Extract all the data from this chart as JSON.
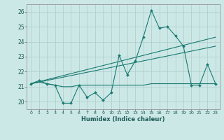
{
  "title": "",
  "xlabel": "Humidex (Indice chaleur)",
  "bg_color": "#cce8e6",
  "grid_color": "#aaccca",
  "line_color": "#1a7a72",
  "xlim": [
    -0.5,
    23.5
  ],
  "ylim": [
    19.5,
    26.5
  ],
  "xticks": [
    0,
    1,
    2,
    3,
    4,
    5,
    6,
    7,
    8,
    9,
    10,
    11,
    12,
    13,
    14,
    15,
    16,
    17,
    18,
    19,
    20,
    21,
    22,
    23
  ],
  "yticks": [
    20,
    21,
    22,
    23,
    24,
    25,
    26
  ],
  "line1_x": [
    0,
    1,
    2,
    3,
    4,
    5,
    6,
    7,
    8,
    9,
    10,
    11,
    12,
    13,
    14,
    15,
    16,
    17,
    18,
    19,
    20,
    21,
    22,
    23
  ],
  "line1_y": [
    21.2,
    21.4,
    21.2,
    21.1,
    19.9,
    19.9,
    21.1,
    20.3,
    20.6,
    20.1,
    20.6,
    23.1,
    21.8,
    22.7,
    24.3,
    26.1,
    24.9,
    25.0,
    24.4,
    23.7,
    21.1,
    21.1,
    22.5,
    21.2
  ],
  "line2_x": [
    0,
    1,
    2,
    3,
    4,
    5,
    6,
    7,
    8,
    9,
    10,
    11,
    12,
    13,
    14,
    15,
    16,
    17,
    18,
    19,
    20,
    21,
    22,
    23
  ],
  "line2_y": [
    21.2,
    21.3,
    21.2,
    21.1,
    21.0,
    21.0,
    21.1,
    21.1,
    21.1,
    21.1,
    21.1,
    21.1,
    21.1,
    21.1,
    21.1,
    21.2,
    21.2,
    21.2,
    21.2,
    21.2,
    21.2,
    21.2,
    21.2,
    21.2
  ],
  "line3_x": [
    0,
    23
  ],
  "line3_y": [
    21.2,
    24.3
  ],
  "line4_x": [
    0,
    23
  ],
  "line4_y": [
    21.2,
    23.7
  ]
}
